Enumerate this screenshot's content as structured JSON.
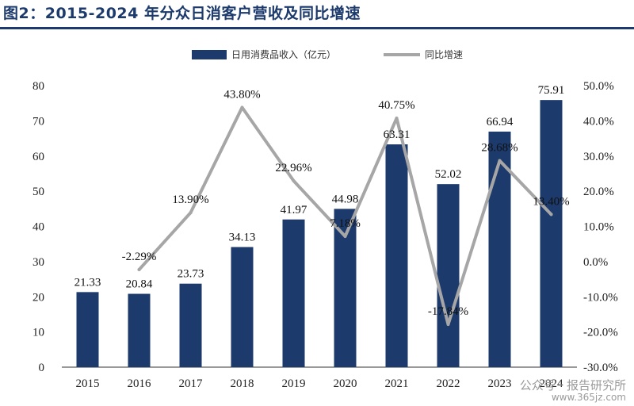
{
  "header": {
    "title": "图2：2015-2024 年分众日消客户营收及同比增速"
  },
  "watermark": {
    "text": "公众号 · 报告研究所",
    "url": "www.365jz.com"
  },
  "chart_data": {
    "type": "bar",
    "categories": [
      "2015",
      "2016",
      "2017",
      "2018",
      "2019",
      "2020",
      "2021",
      "2022",
      "2023",
      "2024"
    ],
    "series": [
      {
        "name": "日用消费品收入（亿元）",
        "type": "bar",
        "axis": "left",
        "color": "#1c3a6b",
        "values": [
          21.33,
          20.84,
          23.73,
          34.13,
          41.97,
          44.98,
          63.31,
          52.02,
          66.94,
          75.91
        ],
        "labels": [
          "21.33",
          "20.84",
          "23.73",
          "34.13",
          "41.97",
          "44.98",
          "63.31",
          "52.02",
          "66.94",
          "75.91"
        ]
      },
      {
        "name": "同比增速",
        "type": "line",
        "axis": "right",
        "color": "#a6a6a6",
        "values": [
          null,
          -2.29,
          13.9,
          43.8,
          22.96,
          7.18,
          40.75,
          -17.84,
          28.68,
          13.4
        ],
        "labels": [
          "",
          "-2.29%",
          "13.90%",
          "43.80%",
          "22.96%",
          "7.18%",
          "40.75%",
          "-17.84%",
          "28.68%",
          "13.40%"
        ]
      }
    ],
    "y_left": {
      "min": 0,
      "max": 80,
      "step": 10,
      "tick_labels": [
        "0",
        "10",
        "20",
        "30",
        "40",
        "50",
        "60",
        "70",
        "80"
      ]
    },
    "y_right": {
      "min": -30,
      "max": 50,
      "step": 10,
      "tick_labels": [
        "-30.0%",
        "-20.0%",
        "-10.0%",
        "0.0%",
        "10.0%",
        "20.0%",
        "30.0%",
        "40.0%",
        "50.0%"
      ]
    },
    "legend_position": "top-center",
    "grid": false
  }
}
